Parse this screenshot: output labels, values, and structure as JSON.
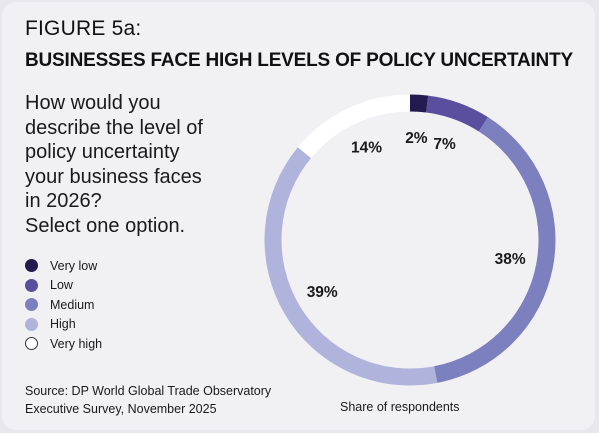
{
  "figure_label": "FIGURE 5a:",
  "title": "BUSINESSES FACE HIGH LEVELS OF POLICY UNCERTAINTY",
  "question_lines": [
    "How would you",
    "describe the level of",
    "policy uncertainty",
    "your business faces",
    "in 2026?",
    "Select one option."
  ],
  "source_lines": [
    "Source: DP World Global Trade Observatory",
    "Executive Survey, November 2025"
  ],
  "axis_note": "Share of respondents",
  "chart_data": {
    "type": "pie",
    "variant": "donut",
    "categories": [
      "Very low",
      "Low",
      "Medium",
      "High",
      "Very high"
    ],
    "values": [
      2,
      7,
      38,
      39,
      14
    ],
    "labels": [
      "2%",
      "7%",
      "38%",
      "39%",
      "14%"
    ],
    "unit": "%",
    "colors": [
      "#231a4f",
      "#5a4f9f",
      "#7d80bf",
      "#b0b3dc",
      "#ffffff"
    ],
    "legend_position": "left"
  }
}
